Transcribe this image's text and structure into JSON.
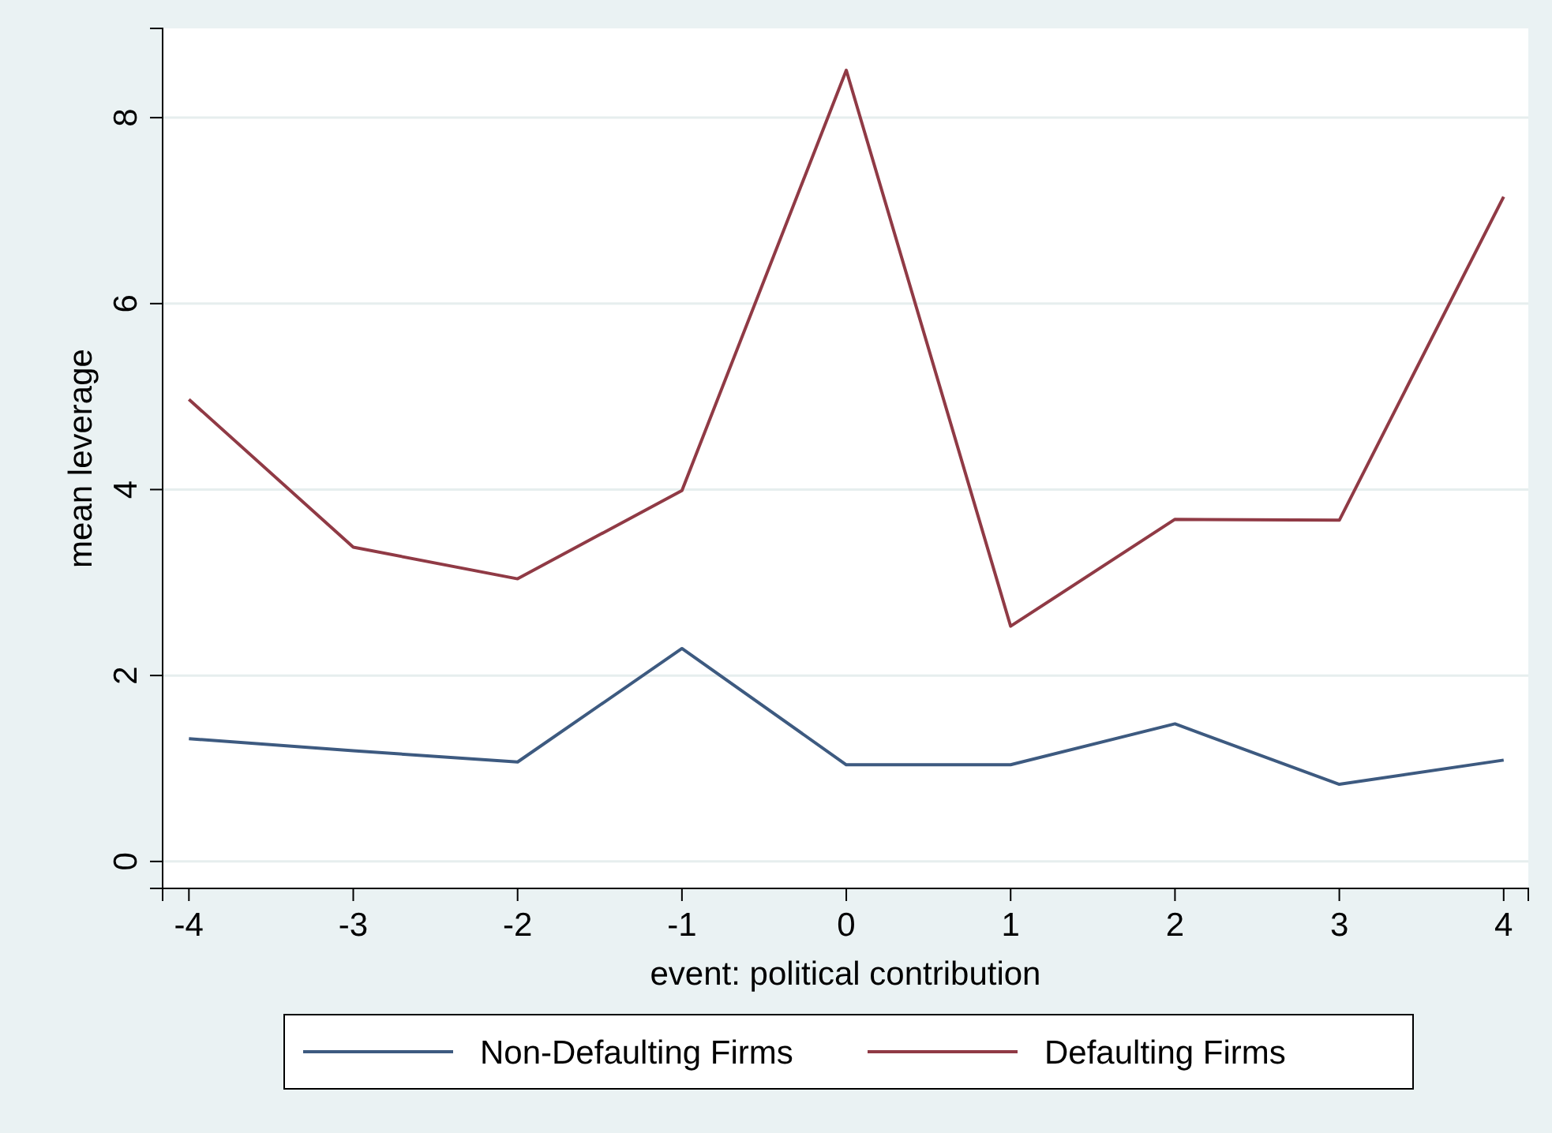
{
  "chart_data": {
    "type": "line",
    "xlabel": "event: political contribution",
    "ylabel": "mean leverage",
    "x": [
      -4,
      -3,
      -2,
      -1,
      0,
      1,
      2,
      3,
      4
    ],
    "series": [
      {
        "name": "Non-Defaulting Firms",
        "color": "#3d5a80",
        "values": [
          1.32,
          1.19,
          1.07,
          2.29,
          1.04,
          1.04,
          1.48,
          0.83,
          1.09
        ]
      },
      {
        "name": "Defaulting Firms",
        "color": "#903a45",
        "values": [
          4.97,
          3.38,
          3.04,
          3.99,
          8.51,
          2.53,
          3.68,
          3.67,
          7.15
        ]
      }
    ],
    "xlim": [
      -4.16,
      4.15
    ],
    "xticks": [
      -4,
      -3,
      -2,
      -1,
      0,
      1,
      2,
      3,
      4
    ],
    "ylim": [
      -0.29,
      8.96
    ],
    "yticks": [
      0,
      2,
      4,
      6,
      8
    ],
    "grid": "y",
    "legend": "bottom",
    "marker": "none",
    "line_style": "solid"
  }
}
